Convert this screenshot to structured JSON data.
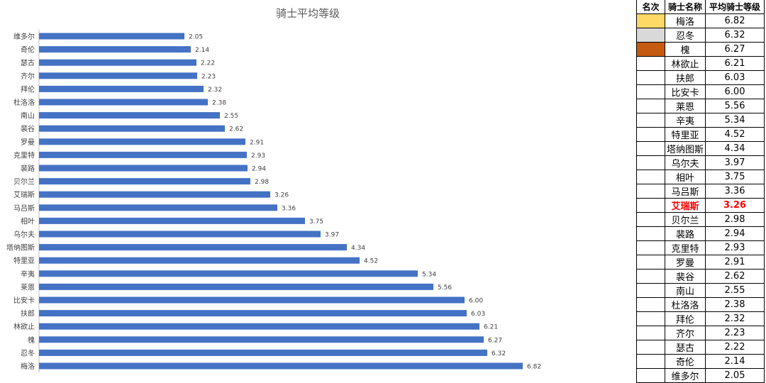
{
  "chart_data": {
    "type": "bar",
    "orientation": "horizontal",
    "title": "骑士平均等级",
    "categories": [
      "维多尔",
      "奇伦",
      "瑟古",
      "齐尔",
      "拜伦",
      "杜洛洛",
      "南山",
      "裴谷",
      "罗曼",
      "克里特",
      "裴路",
      "贝尔兰",
      "艾瑞斯",
      "马吕斯",
      "相叶",
      "乌尔夫",
      "塔纳图斯",
      "特里亚",
      "辛夷",
      "莱恩",
      "比安卡",
      "扶郎",
      "林欲止",
      "槐",
      "忍冬",
      "梅洛"
    ],
    "values": [
      2.05,
      2.14,
      2.22,
      2.23,
      2.32,
      2.38,
      2.55,
      2.62,
      2.91,
      2.93,
      2.94,
      2.98,
      3.26,
      3.36,
      3.75,
      3.97,
      4.34,
      4.52,
      5.34,
      5.56,
      6.0,
      6.03,
      6.21,
      6.27,
      6.32,
      6.82
    ],
    "value_labels": [
      "2.05",
      "2.14",
      "2.22",
      "2.23",
      "2.32",
      "2.38",
      "2.55",
      "2.62",
      "2.91",
      "2.93",
      "2.94",
      "2.98",
      "3.26",
      "3.36",
      "3.75",
      "3.97",
      "4.34",
      "4.52",
      "5.34",
      "5.56",
      "6.00",
      "6.03",
      "6.21",
      "6.27",
      "6.32",
      "6.82"
    ],
    "xlim": [
      0,
      8
    ],
    "bar_color": "#4472c4",
    "grid": false,
    "xlabel": "",
    "ylabel": ""
  },
  "table": {
    "headers": [
      "名次",
      "骑士名称",
      "平均骑士等级"
    ],
    "rank_colors": [
      "#ffd966",
      "#d9d9d9",
      "#c55a11"
    ],
    "highlight_color": "#ff0000",
    "rows": [
      {
        "name": "梅洛",
        "level": "6.82"
      },
      {
        "name": "忍冬",
        "level": "6.32"
      },
      {
        "name": "槐",
        "level": "6.27"
      },
      {
        "name": "林欲止",
        "level": "6.21"
      },
      {
        "name": "扶郎",
        "level": "6.03"
      },
      {
        "name": "比安卡",
        "level": "6.00"
      },
      {
        "name": "莱恩",
        "level": "5.56"
      },
      {
        "name": "辛夷",
        "level": "5.34"
      },
      {
        "name": "特里亚",
        "level": "4.52"
      },
      {
        "name": "塔纳图斯",
        "level": "4.34"
      },
      {
        "name": "乌尔夫",
        "level": "3.97"
      },
      {
        "name": "相叶",
        "level": "3.75"
      },
      {
        "name": "马吕斯",
        "level": "3.36"
      },
      {
        "name": "艾瑞斯",
        "level": "3.26",
        "highlight": true
      },
      {
        "name": "贝尔兰",
        "level": "2.98"
      },
      {
        "name": "裴路",
        "level": "2.94"
      },
      {
        "name": "克里特",
        "level": "2.93"
      },
      {
        "name": "罗曼",
        "level": "2.91"
      },
      {
        "name": "裴谷",
        "level": "2.62"
      },
      {
        "name": "南山",
        "level": "2.55"
      },
      {
        "name": "杜洛洛",
        "level": "2.38"
      },
      {
        "name": "拜伦",
        "level": "2.32"
      },
      {
        "name": "齐尔",
        "level": "2.23"
      },
      {
        "name": "瑟古",
        "level": "2.22"
      },
      {
        "name": "奇伦",
        "level": "2.14"
      },
      {
        "name": "维多尔",
        "level": "2.05"
      }
    ]
  }
}
